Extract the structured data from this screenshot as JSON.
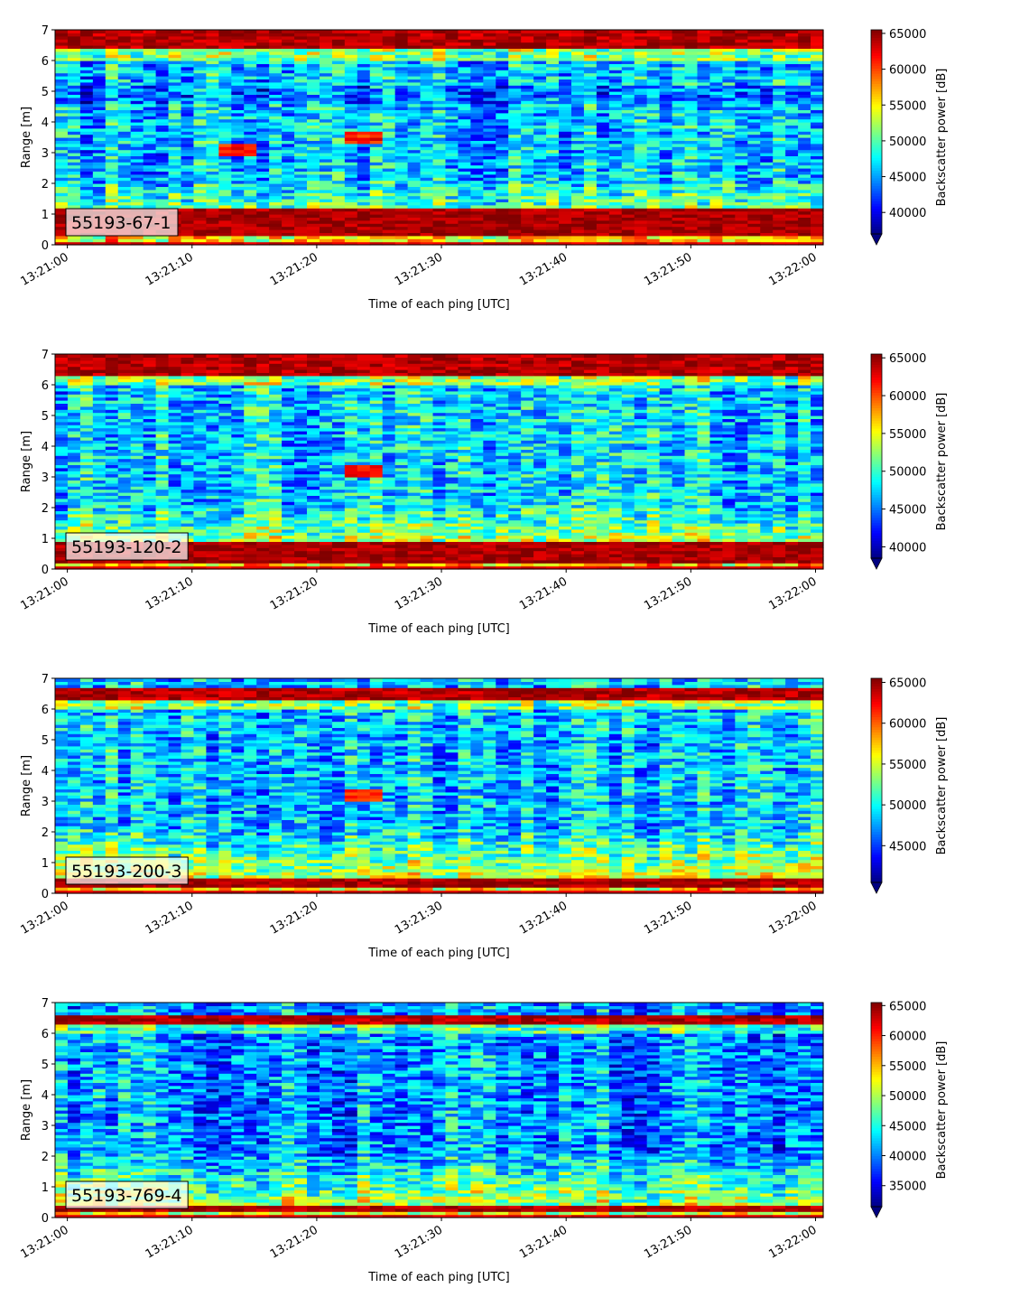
{
  "chart_data": [
    {
      "type": "heatmap",
      "label": "55193-67-1",
      "xlabel": "Time of each ping [UTC]",
      "ylabel": "Range [m]",
      "x_start": "13:21:00",
      "x_end": "13:22:00",
      "xticks": [
        "13:21:00",
        "13:21:10",
        "13:21:20",
        "13:21:30",
        "13:21:40",
        "13:21:50",
        "13:22:00"
      ],
      "yticks": [
        "0",
        "1",
        "2",
        "3",
        "4",
        "5",
        "6",
        "7"
      ],
      "ylim": [
        0,
        7
      ],
      "colorbar": {
        "label": "Backscatter power [dB]",
        "ticks": [
          "40000",
          "45000",
          "50000",
          "55000",
          "60000",
          "65000"
        ],
        "range": [
          37000,
          65500
        ],
        "colormap": "jet",
        "extend": "min"
      },
      "features": {
        "bottom_band": [
          0.3,
          1.15
        ],
        "top_band": [
          6.4,
          7.0
        ],
        "fish_traces": [
          [
            "13:21:13",
            "13:21:16",
            3.1
          ],
          [
            "13:21:23",
            "13:21:26",
            3.5
          ]
        ]
      }
    },
    {
      "type": "heatmap",
      "label": "55193-120-2",
      "xlabel": "Time of each ping [UTC]",
      "ylabel": "Range [m]",
      "x_start": "13:21:00",
      "x_end": "13:22:00",
      "xticks": [
        "13:21:00",
        "13:21:10",
        "13:21:20",
        "13:21:30",
        "13:21:40",
        "13:21:50",
        "13:22:00"
      ],
      "yticks": [
        "0",
        "1",
        "2",
        "3",
        "4",
        "5",
        "6",
        "7"
      ],
      "ylim": [
        0,
        7
      ],
      "colorbar": {
        "label": "Backscatter power [dB]",
        "ticks": [
          "40000",
          "45000",
          "50000",
          "55000",
          "60000",
          "65000"
        ],
        "range": [
          38500,
          65500
        ],
        "colormap": "jet",
        "extend": "min"
      },
      "features": {
        "bottom_band": [
          0.2,
          0.9
        ],
        "top_band": [
          6.3,
          7.0
        ],
        "fish_traces": [
          [
            "13:21:23",
            "13:21:26",
            3.2
          ]
        ]
      }
    },
    {
      "type": "heatmap",
      "label": "55193-200-3",
      "xlabel": "Time of each ping [UTC]",
      "ylabel": "Range [m]",
      "x_start": "13:21:00",
      "x_end": "13:22:00",
      "xticks": [
        "13:21:00",
        "13:21:10",
        "13:21:20",
        "13:21:30",
        "13:21:40",
        "13:21:50",
        "13:22:00"
      ],
      "yticks": [
        "0",
        "1",
        "2",
        "3",
        "4",
        "5",
        "6",
        "7"
      ],
      "ylim": [
        0,
        7
      ],
      "colorbar": {
        "label": "Backscatter power [dB]",
        "ticks": [
          "45000",
          "50000",
          "55000",
          "60000",
          "65000"
        ],
        "range": [
          40500,
          65500
        ],
        "colormap": "jet",
        "extend": "min"
      },
      "features": {
        "bottom_band": [
          0.2,
          0.5
        ],
        "top_band": [
          6.3,
          6.7
        ],
        "fish_traces": [
          [
            "13:21:23",
            "13:21:26",
            3.2
          ]
        ]
      }
    },
    {
      "type": "heatmap",
      "label": "55193-769-4",
      "xlabel": "Time of each ping [UTC]",
      "ylabel": "Range [m]",
      "x_start": "13:21:00",
      "x_end": "13:22:00",
      "xticks": [
        "13:21:00",
        "13:21:10",
        "13:21:20",
        "13:21:30",
        "13:21:40",
        "13:21:50",
        "13:22:00"
      ],
      "yticks": [
        "0",
        "1",
        "2",
        "3",
        "4",
        "5",
        "6",
        "7"
      ],
      "ylim": [
        0,
        7
      ],
      "colorbar": {
        "label": "Backscatter power [dB]",
        "ticks": [
          "35000",
          "40000",
          "45000",
          "50000",
          "55000",
          "60000",
          "65000"
        ],
        "range": [
          31500,
          65500
        ],
        "colormap": "jet",
        "extend": "min"
      },
      "features": {
        "bottom_band": [
          0.2,
          0.4
        ],
        "top_band": [
          6.3,
          6.6
        ],
        "fish_traces": []
      }
    }
  ]
}
